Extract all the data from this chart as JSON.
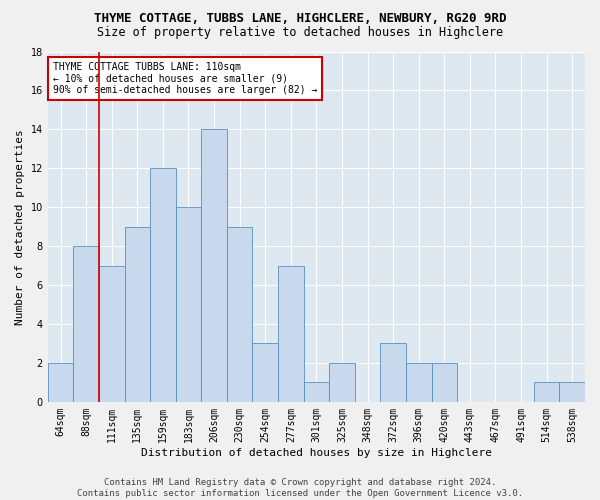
{
  "title": "THYME COTTAGE, TUBBS LANE, HIGHCLERE, NEWBURY, RG20 9RD",
  "subtitle": "Size of property relative to detached houses in Highclere",
  "xlabel": "Distribution of detached houses by size in Highclere",
  "ylabel": "Number of detached properties",
  "bar_color": "#c9d9ed",
  "bar_edge_color": "#5a8fc0",
  "categories": [
    "64sqm",
    "88sqm",
    "111sqm",
    "135sqm",
    "159sqm",
    "183sqm",
    "206sqm",
    "230sqm",
    "254sqm",
    "277sqm",
    "301sqm",
    "325sqm",
    "348sqm",
    "372sqm",
    "396sqm",
    "420sqm",
    "443sqm",
    "467sqm",
    "491sqm",
    "514sqm",
    "538sqm"
  ],
  "values": [
    2,
    8,
    7,
    9,
    12,
    10,
    14,
    9,
    3,
    7,
    1,
    2,
    0,
    3,
    2,
    2,
    0,
    0,
    0,
    1,
    1
  ],
  "red_line_index": 2,
  "annotation_text": "THYME COTTAGE TUBBS LANE: 110sqm\n← 10% of detached houses are smaller (9)\n90% of semi-detached houses are larger (82) →",
  "annotation_box_color": "#ffffff",
  "annotation_box_edge_color": "#cc0000",
  "footer_line1": "Contains HM Land Registry data © Crown copyright and database right 2024.",
  "footer_line2": "Contains public sector information licensed under the Open Government Licence v3.0.",
  "ylim": [
    0,
    18
  ],
  "yticks": [
    0,
    2,
    4,
    6,
    8,
    10,
    12,
    14,
    16,
    18
  ],
  "background_color": "#dde8f0",
  "grid_color": "#ffffff",
  "fig_background": "#f0f0f0",
  "title_fontsize": 9,
  "subtitle_fontsize": 8.5,
  "xlabel_fontsize": 8,
  "ylabel_fontsize": 8,
  "tick_fontsize": 7,
  "annotation_fontsize": 7,
  "footer_fontsize": 6.5
}
